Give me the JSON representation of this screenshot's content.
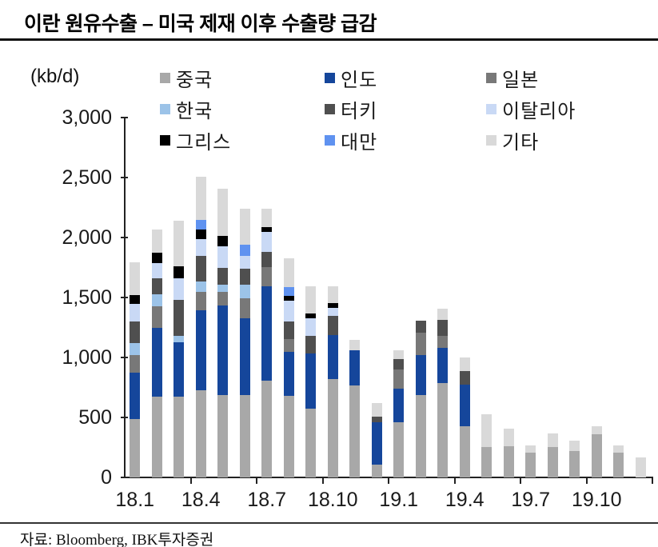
{
  "title": "이란 원유수출 – 미국 제재 이후 수출량 급감",
  "unit_label": "(kb/d)",
  "source": "자료: Bloomberg, IBK투자증권",
  "chart_data": {
    "type": "bar",
    "stacked": true,
    "title": "이란 원유수출 – 미국 제재 이후 수출량 급감",
    "ylabel": "(kb/d)",
    "ylim": [
      0,
      3000
    ],
    "y_tick_step": 500,
    "y_tick_labels": [
      "0",
      "500",
      "1,000",
      "1,500",
      "2,000",
      "2,500",
      "3,000"
    ],
    "grid": false,
    "legend_position": "top-inside",
    "categories": [
      "18.1",
      "18.2",
      "18.3",
      "18.4",
      "18.5",
      "18.6",
      "18.7",
      "18.8",
      "18.9",
      "18.10",
      "18.11",
      "18.12",
      "19.1",
      "19.2",
      "19.3",
      "19.4",
      "19.5",
      "19.6",
      "19.7",
      "19.8",
      "19.9",
      "19.10",
      "19.11",
      "19.12"
    ],
    "x_tick_labels": [
      "18.1",
      "18.4",
      "18.7",
      "18.10",
      "19.1",
      "19.4",
      "19.7",
      "19.10"
    ],
    "x_label_every": 3,
    "series": [
      {
        "name": "중국",
        "color": "#a8a8a8",
        "values": [
          490,
          675,
          675,
          725,
          685,
          685,
          805,
          680,
          575,
          820,
          770,
          110,
          460,
          685,
          785,
          430,
          255,
          260,
          205,
          255,
          220,
          360,
          205,
          0
        ]
      },
      {
        "name": "인도",
        "color": "#15469b",
        "values": [
          385,
          570,
          450,
          670,
          750,
          640,
          790,
          370,
          460,
          365,
          290,
          350,
          280,
          335,
          295,
          345,
          0,
          0,
          0,
          0,
          0,
          0,
          0,
          0
        ]
      },
      {
        "name": "일본",
        "color": "#787878",
        "values": [
          145,
          180,
          0,
          155,
          110,
          170,
          160,
          105,
          0,
          0,
          0,
          0,
          160,
          190,
          100,
          0,
          0,
          0,
          0,
          0,
          0,
          0,
          0,
          0
        ]
      },
      {
        "name": "한국",
        "color": "#9cc3e8",
        "values": [
          100,
          100,
          55,
          85,
          65,
          110,
          0,
          0,
          0,
          0,
          0,
          0,
          0,
          0,
          0,
          0,
          0,
          0,
          0,
          0,
          0,
          0,
          0,
          0
        ]
      },
      {
        "name": "터키",
        "color": "#4f4f4f",
        "values": [
          180,
          135,
          300,
          215,
          135,
          135,
          125,
          145,
          145,
          165,
          0,
          45,
          90,
          100,
          135,
          110,
          0,
          0,
          0,
          0,
          0,
          0,
          0,
          0
        ]
      },
      {
        "name": "이탈리아",
        "color": "#c9d9f5",
        "values": [
          145,
          125,
          180,
          140,
          180,
          110,
          165,
          175,
          145,
          65,
          0,
          0,
          0,
          0,
          0,
          0,
          0,
          0,
          0,
          0,
          0,
          0,
          0,
          0
        ]
      },
      {
        "name": "그리스",
        "color": "#000000",
        "values": [
          75,
          90,
          100,
          80,
          90,
          0,
          40,
          40,
          40,
          40,
          0,
          0,
          0,
          0,
          0,
          0,
          0,
          0,
          0,
          0,
          0,
          0,
          0,
          0
        ]
      },
      {
        "name": "대만",
        "color": "#5f92f0",
        "values": [
          0,
          0,
          0,
          80,
          0,
          90,
          0,
          75,
          0,
          0,
          0,
          0,
          0,
          0,
          0,
          0,
          0,
          0,
          0,
          0,
          0,
          0,
          0,
          0
        ]
      },
      {
        "name": "기타",
        "color": "#d9d9d9",
        "values": [
          275,
          190,
          380,
          355,
          390,
          300,
          155,
          240,
          230,
          140,
          85,
          115,
          70,
          0,
          90,
          115,
          270,
          150,
          60,
          110,
          85,
          65,
          65,
          170
        ]
      }
    ]
  }
}
